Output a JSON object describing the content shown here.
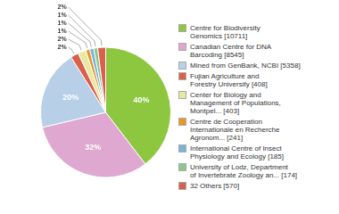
{
  "chart_data": {
    "type": "pie",
    "categories": [
      "Centre for Biodiversity\nGenomics [10711]",
      "Canadian Centre for DNA\nBarcoding [8545]",
      "Mined from GenBank, NCBI [5358]",
      "Fujian Agriculture and\nForestry University [408]",
      "Center for Biology and\nManagement of Populations,\nMontpel... [403]",
      "Centre de Cooperation\nInternationale en Recherche\nAgronom... [241]",
      "International Centre of Insect\nPhysiology and Ecology [185]",
      "University of Lodz, Department\nof Invertebrate Zoology an... [174]",
      "32 Others [570]"
    ],
    "values": [
      40,
      32,
      20,
      2,
      2,
      1,
      1,
      1,
      2
    ],
    "value_labels": [
      "40%",
      "32%",
      "20%",
      "2%",
      "2%",
      "1%",
      "1%",
      "1%",
      "2%"
    ],
    "colors": [
      "#8dc63f",
      "#dea8d0",
      "#b8cfe8",
      "#d9604a",
      "#e8e8a0",
      "#e8952a",
      "#7ab4d8",
      "#8dc68f",
      "#d9604a"
    ],
    "data_labels": true,
    "legend": "right"
  }
}
